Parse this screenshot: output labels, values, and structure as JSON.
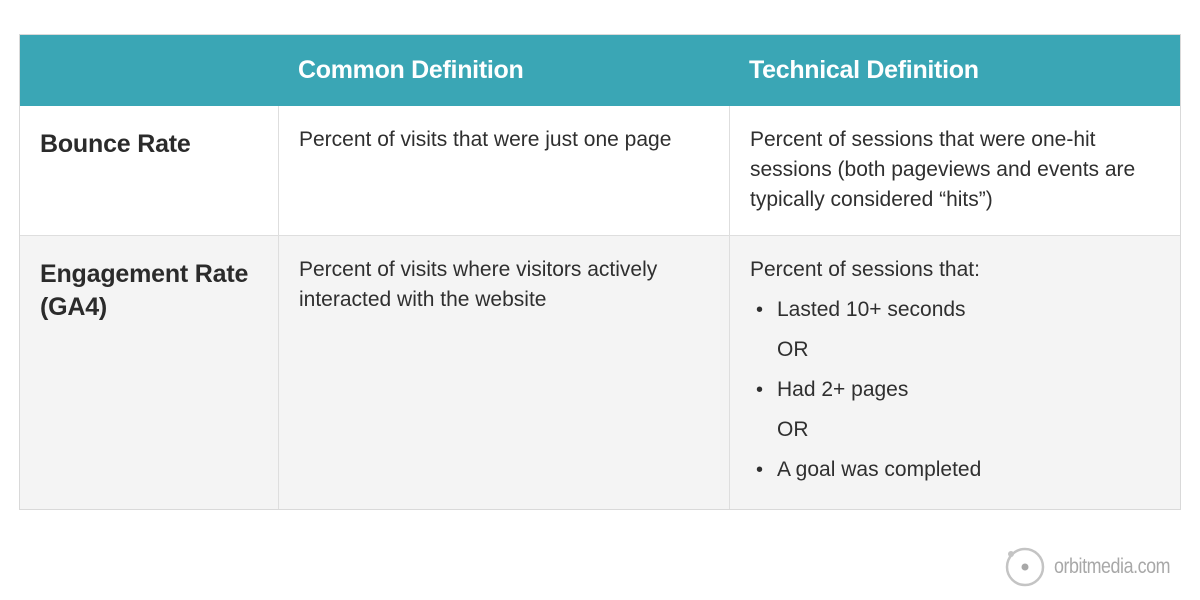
{
  "table": {
    "headers": [
      "",
      "Common Definition",
      "Technical Definition"
    ],
    "rows": [
      {
        "label": "Bounce Rate",
        "common": "Percent of visits that were just one page",
        "technical_intro": "Percent of sessions that were one-hit sessions (both pageviews and events are typically considered “hits”)",
        "technical_items": []
      },
      {
        "label": "Engagement Rate (GA4)",
        "common": "Percent of visits where visitors actively interacted with the website",
        "technical_intro": "Percent of sessions that:",
        "technical_items": [
          {
            "text": "Lasted 10+ seconds",
            "bullet": true
          },
          {
            "text": "OR",
            "bullet": false
          },
          {
            "text": "Had 2+ pages",
            "bullet": true
          },
          {
            "text": "OR",
            "bullet": false
          },
          {
            "text": "A goal was completed",
            "bullet": true
          }
        ]
      }
    ]
  },
  "brand": {
    "logo_text": "orbitmedia.com",
    "logo_icon": "orbit-circle-icon",
    "header_color": "#3aa6b5",
    "logo_color": "#a8a8a8"
  }
}
